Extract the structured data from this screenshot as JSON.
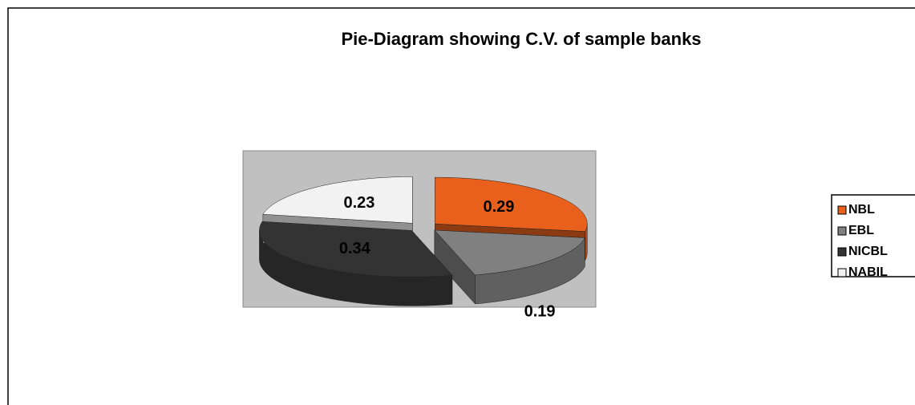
{
  "chart_data": {
    "type": "pie",
    "title": "Pie-Diagram showing C.V. of sample banks",
    "categories": [
      "NBL",
      "EBL",
      "NICBL",
      "NABIL"
    ],
    "values": [
      0.29,
      0.19,
      0.34,
      0.23
    ],
    "colors": [
      "#e8601c",
      "#808080",
      "#333333",
      "#f2f2f2"
    ],
    "legend": "right"
  }
}
